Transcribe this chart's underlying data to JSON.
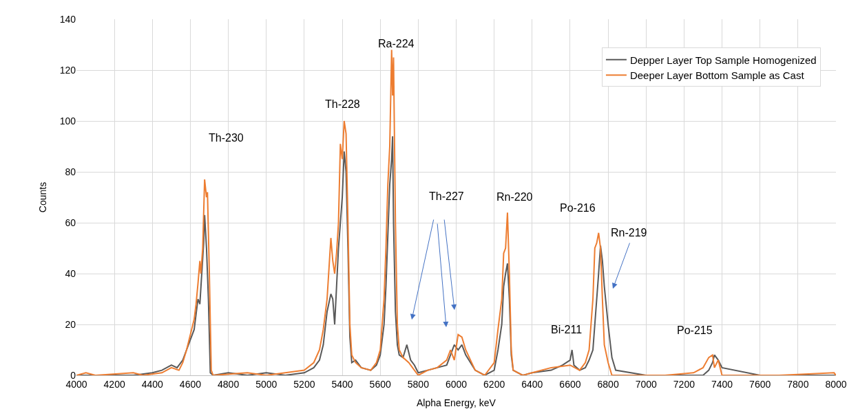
{
  "chart_data": {
    "type": "line",
    "xlabel": "Alpha Energy, keV",
    "ylabel": "Counts",
    "xlim": [
      4000,
      8000
    ],
    "xticks": [
      4000,
      4200,
      4400,
      4600,
      4800,
      5000,
      5200,
      5400,
      5600,
      5800,
      6000,
      6200,
      6400,
      6600,
      6800,
      7000,
      7200,
      7400,
      7600,
      7800,
      8000
    ],
    "ylim": [
      0,
      140
    ],
    "yticks": [
      0,
      20,
      40,
      60,
      80,
      100,
      120,
      140
    ],
    "grid": true,
    "legend": "top right",
    "marker": "none",
    "line_style": "solid",
    "series": [
      {
        "name": "Depper Layer Top Sample Homogenized",
        "color": "#595959",
        "x": [
          4000,
          4100,
          4200,
          4300,
          4400,
          4450,
          4500,
          4530,
          4560,
          4580,
          4600,
          4620,
          4630,
          4640,
          4650,
          4660,
          4670,
          4675,
          4685,
          4695,
          4705,
          4720,
          4800,
          4900,
          5000,
          5100,
          5200,
          5250,
          5280,
          5300,
          5320,
          5340,
          5350,
          5360,
          5370,
          5380,
          5390,
          5400,
          5410,
          5420,
          5430,
          5440,
          5450,
          5470,
          5500,
          5550,
          5580,
          5600,
          5620,
          5630,
          5640,
          5650,
          5660,
          5665,
          5670,
          5680,
          5690,
          5700,
          5720,
          5740,
          5760,
          5780,
          5800,
          5850,
          5900,
          5950,
          5970,
          5990,
          6010,
          6030,
          6050,
          6100,
          6150,
          6200,
          6220,
          6240,
          6250,
          6260,
          6270,
          6280,
          6290,
          6300,
          6350,
          6400,
          6500,
          6560,
          6600,
          6610,
          6620,
          6650,
          6680,
          6700,
          6720,
          6730,
          6740,
          6750,
          6760,
          6770,
          6780,
          6800,
          6820,
          6840,
          7000,
          7100,
          7250,
          7300,
          7330,
          7350,
          7360,
          7380,
          7400,
          7600,
          7700,
          7800,
          8000
        ],
        "values": [
          0,
          0,
          0,
          0,
          1,
          2,
          4,
          3,
          6,
          10,
          14,
          18,
          24,
          30,
          28,
          40,
          52,
          63,
          50,
          30,
          1,
          0,
          1,
          0,
          1,
          0,
          1,
          3,
          6,
          12,
          25,
          32,
          30,
          20,
          35,
          50,
          60,
          70,
          88,
          80,
          50,
          15,
          5,
          6,
          3,
          2,
          4,
          8,
          20,
          35,
          55,
          75,
          85,
          94,
          60,
          25,
          12,
          8,
          7,
          12,
          6,
          4,
          1,
          2,
          3,
          4,
          8,
          12,
          10,
          12,
          8,
          2,
          0,
          2,
          10,
          20,
          35,
          40,
          44,
          30,
          8,
          2,
          0,
          1,
          2,
          4,
          6,
          10,
          4,
          2,
          3,
          6,
          10,
          20,
          30,
          40,
          51,
          45,
          35,
          20,
          7,
          2,
          0,
          0,
          0,
          0,
          2,
          5,
          8,
          6,
          3,
          0,
          0,
          0,
          0
        ]
      },
      {
        "name": "Deeper Layer Bottom Sample as Cast",
        "color": "#ed7d31",
        "x": [
          4000,
          4050,
          4100,
          4300,
          4350,
          4450,
          4500,
          4540,
          4560,
          4580,
          4600,
          4620,
          4630,
          4640,
          4650,
          4655,
          4665,
          4675,
          4685,
          4690,
          4700,
          4710,
          4720,
          4900,
          5000,
          5100,
          5200,
          5250,
          5280,
          5300,
          5320,
          5340,
          5350,
          5360,
          5370,
          5380,
          5390,
          5400,
          5410,
          5420,
          5430,
          5440,
          5450,
          5470,
          5500,
          5550,
          5580,
          5600,
          5620,
          5630,
          5640,
          5650,
          5660,
          5665,
          5670,
          5680,
          5690,
          5700,
          5720,
          5750,
          5780,
          5800,
          5850,
          5900,
          5950,
          5970,
          5990,
          6010,
          6030,
          6050,
          6100,
          6150,
          6200,
          6220,
          6240,
          6250,
          6260,
          6270,
          6280,
          6290,
          6300,
          6350,
          6400,
          6500,
          6600,
          6650,
          6680,
          6700,
          6720,
          6730,
          6740,
          6750,
          6760,
          6770,
          6780,
          6800,
          6820,
          7000,
          7100,
          7250,
          7300,
          7330,
          7350,
          7360,
          7380,
          7400,
          7700,
          7990,
          8000
        ],
        "values": [
          0,
          1,
          0,
          1,
          0,
          1,
          3,
          2,
          5,
          10,
          16,
          22,
          28,
          36,
          45,
          40,
          50,
          77,
          70,
          72,
          40,
          2,
          0,
          1,
          0,
          1,
          2,
          5,
          10,
          18,
          30,
          54,
          45,
          40,
          48,
          60,
          91,
          85,
          100,
          95,
          60,
          20,
          8,
          5,
          3,
          2,
          5,
          10,
          30,
          50,
          75,
          90,
          128,
          110,
          125,
          60,
          20,
          10,
          7,
          5,
          2,
          0,
          2,
          3,
          6,
          10,
          6,
          16,
          15,
          10,
          2,
          0,
          5,
          18,
          30,
          48,
          50,
          64,
          40,
          10,
          2,
          0,
          1,
          3,
          4,
          2,
          5,
          10,
          30,
          50,
          52,
          56,
          50,
          30,
          12,
          5,
          0,
          0,
          0,
          1,
          3,
          7,
          8,
          3,
          6,
          0,
          0,
          1,
          0
        ]
      }
    ],
    "annotations": [
      "Th-230",
      "Th-228",
      "Ra-224",
      "Th-227",
      "Rn-220",
      "Po-216",
      "Rn-219",
      "Bi-211",
      "Po-215"
    ]
  }
}
